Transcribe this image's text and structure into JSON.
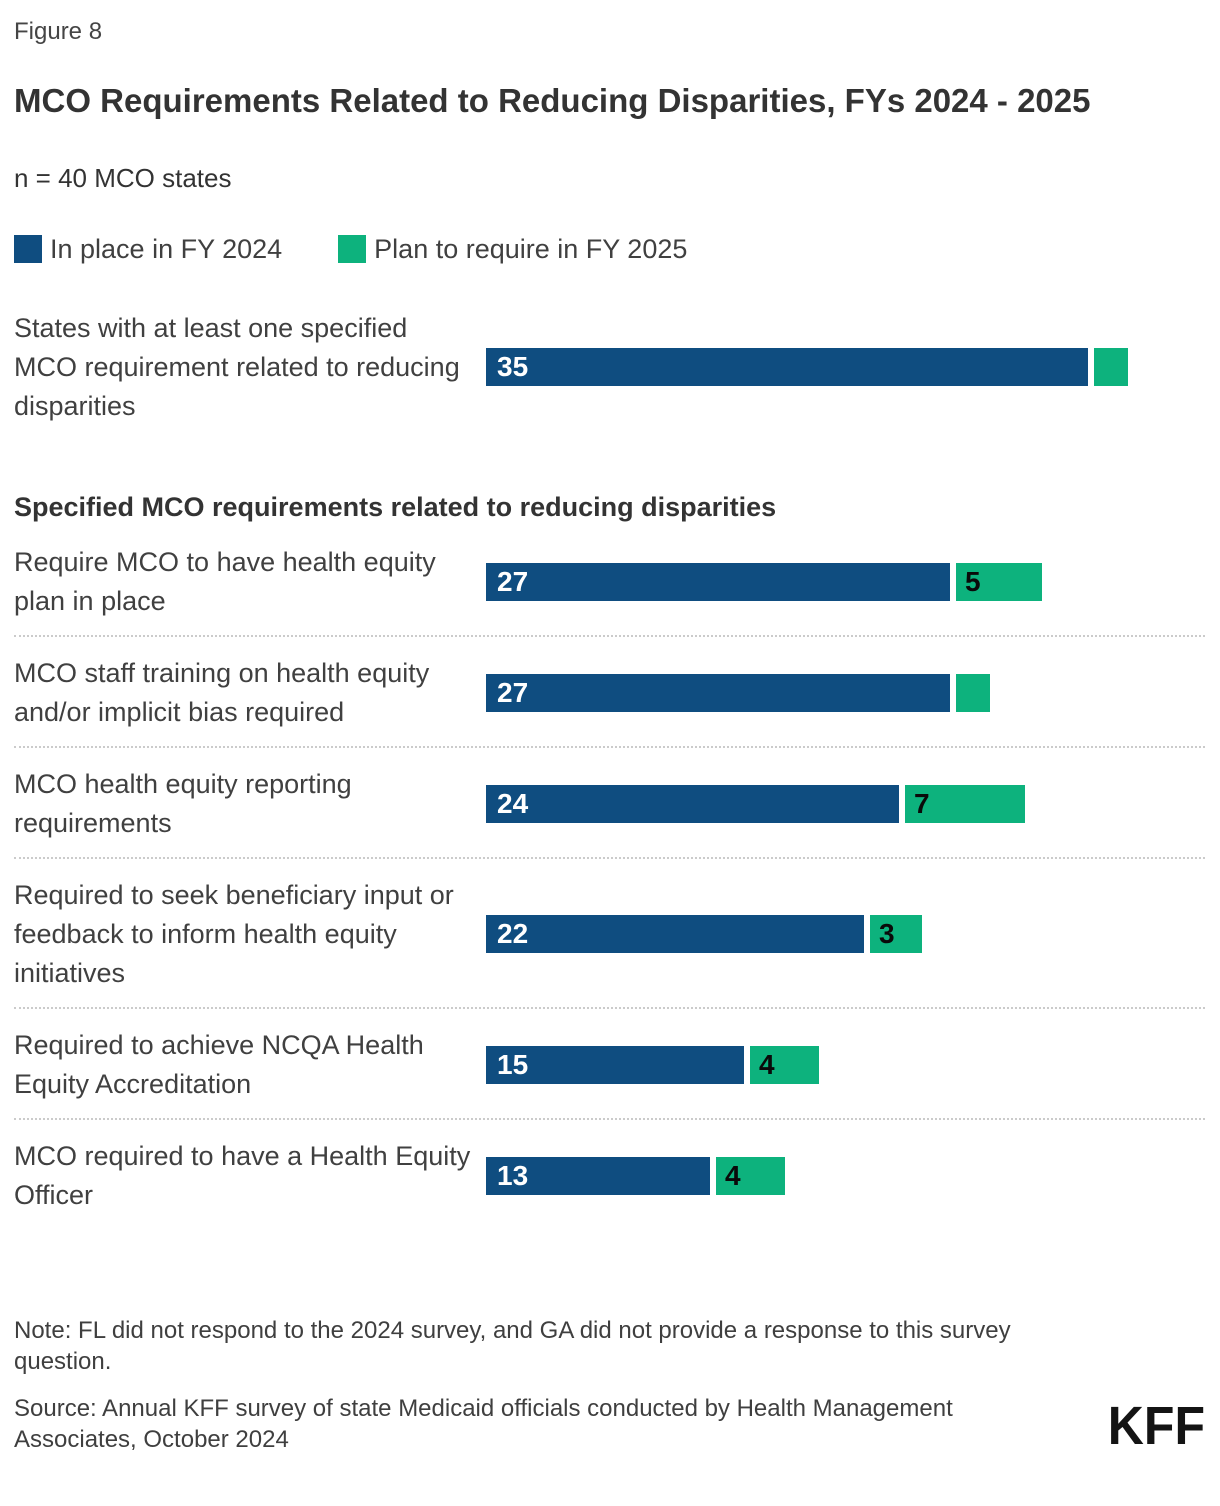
{
  "figure_label": "Figure 8",
  "title": "MCO Requirements Related to Reducing Disparities, FYs 2024 - 2025",
  "subtitle": "n = 40 MCO states",
  "legend": [
    {
      "name": "In place in FY 2024",
      "color": "#0F4D80"
    },
    {
      "name": "Plan to require in FY 2025",
      "color": "#0DB27D"
    }
  ],
  "section_header": "Specified MCO requirements related to reducing disparities",
  "footer": {
    "note": "Note: FL did not respond to the 2024 survey, and GA did not provide a response to this survey question.",
    "source": "Source: Annual KFF survey of state Medicaid officials conducted by Health Management Associates, October 2024",
    "logo": "KFF"
  },
  "chart_data": {
    "type": "bar",
    "orientation": "horizontal",
    "stacked": true,
    "grid": false,
    "legend_position": "top",
    "axis_max": 40,
    "series": [
      "In place in FY 2024",
      "Plan to require in FY 2025"
    ],
    "colors": {
      "in_place_fy2024": "#0F4D80",
      "plan_fy2025": "#0DB27D"
    },
    "rows": [
      {
        "label": "States with at least one specified MCO requirement related to reducing disparities",
        "section": "overall",
        "in_place_fy2024": 35,
        "plan_fy2025": 2,
        "value_label_fy2024": "35",
        "value_label_fy2025": ""
      },
      {
        "label": "Require MCO to have health equity plan in place",
        "section": "specified",
        "in_place_fy2024": 27,
        "plan_fy2025": 5,
        "value_label_fy2024": "27",
        "value_label_fy2025": "5"
      },
      {
        "label": "MCO staff training on health equity and/or implicit bias required",
        "section": "specified",
        "in_place_fy2024": 27,
        "plan_fy2025": 2,
        "value_label_fy2024": "27",
        "value_label_fy2025": ""
      },
      {
        "label": "MCO health equity reporting requirements",
        "section": "specified",
        "in_place_fy2024": 24,
        "plan_fy2025": 7,
        "value_label_fy2024": "24",
        "value_label_fy2025": "7"
      },
      {
        "label": "Required to seek beneficiary input or feedback to inform health equity initiatives",
        "section": "specified",
        "in_place_fy2024": 22,
        "plan_fy2025": 3,
        "value_label_fy2024": "22",
        "value_label_fy2025": "3"
      },
      {
        "label": "Required to achieve NCQA Health Equity Accreditation",
        "section": "specified",
        "in_place_fy2024": 15,
        "plan_fy2025": 4,
        "value_label_fy2024": "15",
        "value_label_fy2025": "4"
      },
      {
        "label": "MCO required to have a Health Equity Officer",
        "section": "specified",
        "in_place_fy2024": 13,
        "plan_fy2025": 4,
        "value_label_fy2024": "13",
        "value_label_fy2025": "4"
      }
    ]
  }
}
